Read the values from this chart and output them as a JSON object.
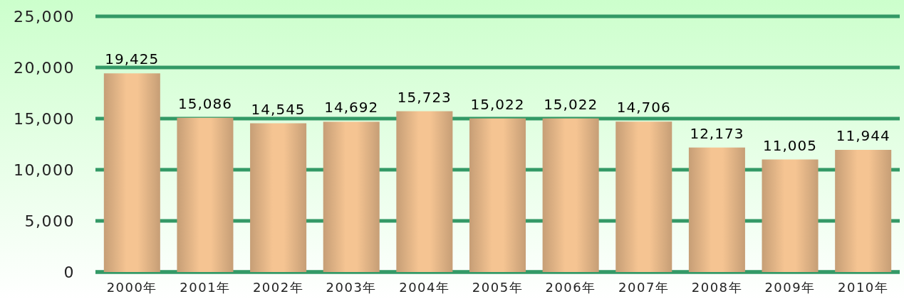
{
  "chart_data": {
    "type": "bar",
    "categories": [
      "2000年",
      "2001年",
      "2002年",
      "2003年",
      "2004年",
      "2005年",
      "2006年",
      "2007年",
      "2008年",
      "2009年",
      "2010年"
    ],
    "values": [
      19425,
      15086,
      14545,
      14692,
      15723,
      15022,
      15022,
      14706,
      12173,
      11005,
      11944
    ],
    "value_labels": [
      "19,425",
      "15,086",
      "14,545",
      "14,692",
      "15,723",
      "15,022",
      "15,022",
      "14,706",
      "12,173",
      "11,005",
      "11,944"
    ],
    "color": "#f5c492",
    "ylim": [
      0,
      25000
    ],
    "yticks": [
      0,
      {
        "value": 5000,
        "label": "5,000"
      },
      {
        "value": 10000,
        "label": "10,000"
      },
      {
        "value": 15000,
        "label": "15,000"
      },
      {
        "value": 20000,
        "label": "20,000"
      },
      {
        "value": 25000,
        "label": "25,000"
      }
    ],
    "grid": "y"
  }
}
